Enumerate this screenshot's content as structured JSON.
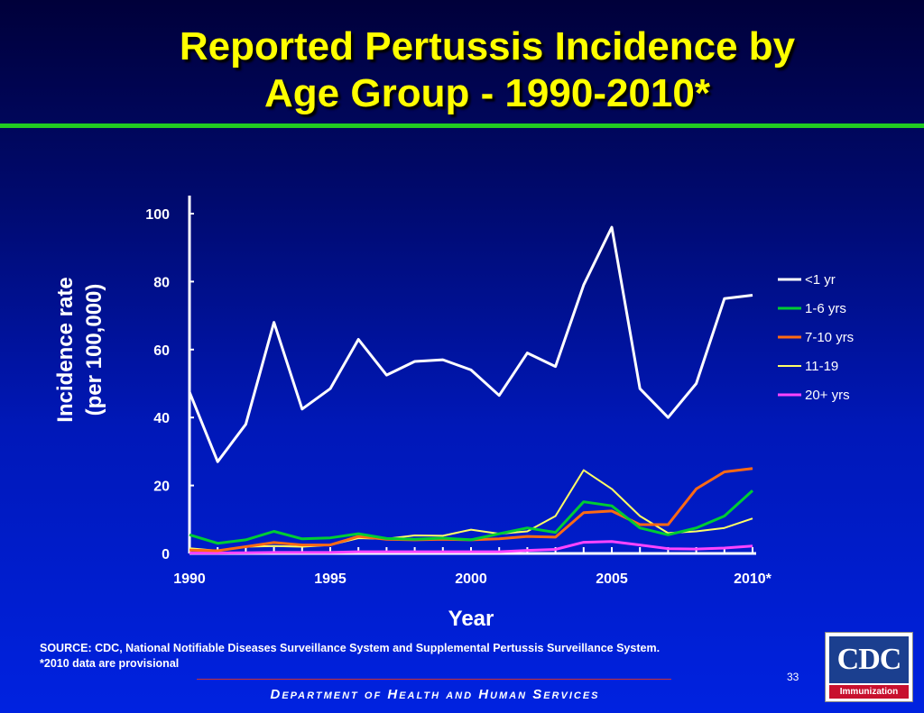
{
  "title": {
    "line1": "Reported Pertussis Incidence by",
    "line2": "Age Group - 1990-2010*"
  },
  "colors": {
    "title": "#ffff00",
    "rule": "#22cc22",
    "axis": "#ffffff"
  },
  "chart_data": {
    "type": "line",
    "xlabel": "Year",
    "ylabel": [
      "Incidence rate",
      "(per 100,000)"
    ],
    "x": [
      1990,
      1991,
      1992,
      1993,
      1994,
      1995,
      1996,
      1997,
      1998,
      1999,
      2000,
      2001,
      2002,
      2003,
      2004,
      2005,
      2006,
      2007,
      2008,
      2009,
      2010
    ],
    "x_tick_labels": [
      {
        "x": 1990,
        "label": "1990"
      },
      {
        "x": 1995,
        "label": "1995"
      },
      {
        "x": 2000,
        "label": "2000"
      },
      {
        "x": 2005,
        "label": "2005"
      },
      {
        "x": 2010,
        "label": "2010*"
      }
    ],
    "xlim": [
      1990,
      2010
    ],
    "ylim": [
      0,
      100
    ],
    "y_ticks": [
      0,
      20,
      40,
      60,
      80,
      100
    ],
    "grid": false,
    "legend": "right",
    "series": [
      {
        "name": "<1 yr",
        "color": "#ffffff",
        "values": [
          47.5,
          27.0,
          38.0,
          68.0,
          42.5,
          48.5,
          63.0,
          52.5,
          56.5,
          57.0,
          54.0,
          46.5,
          59.0,
          55.0,
          79.0,
          96.0,
          48.5,
          40.0,
          50.0,
          75.0,
          76.0
        ]
      },
      {
        "name": "1-6 yrs",
        "color": "#00cc33",
        "values": [
          5.5,
          3.0,
          4.0,
          6.5,
          4.3,
          4.6,
          5.8,
          4.4,
          4.2,
          4.5,
          4.0,
          5.8,
          7.5,
          6.2,
          15.2,
          14.0,
          7.5,
          5.5,
          7.5,
          11.0,
          18.5
        ]
      },
      {
        "name": "7-10 yrs",
        "color": "#ff6a13",
        "values": [
          1.0,
          0.8,
          2.0,
          3.2,
          2.5,
          2.5,
          5.0,
          4.2,
          4.0,
          4.2,
          4.0,
          4.3,
          5.0,
          4.8,
          12.0,
          12.5,
          8.5,
          8.5,
          19.0,
          24.0,
          25.0
        ]
      },
      {
        "name": "11-19",
        "color": "#ffff66",
        "values": [
          1.5,
          0.8,
          2.0,
          2.2,
          2.0,
          2.5,
          4.5,
          4.3,
          5.3,
          5.2,
          7.0,
          5.8,
          6.5,
          11.0,
          24.5,
          19.0,
          11.0,
          6.0,
          6.5,
          7.5,
          10.3
        ]
      },
      {
        "name": "20+ yrs",
        "color": "#ff44ff",
        "values": [
          0.1,
          0.1,
          0.2,
          0.3,
          0.3,
          0.3,
          0.5,
          0.5,
          0.5,
          0.5,
          0.5,
          0.5,
          0.9,
          1.2,
          3.3,
          3.5,
          2.5,
          1.4,
          1.3,
          1.6,
          2.2
        ]
      }
    ]
  },
  "source": {
    "line1": "SOURCE: CDC, National Notifiable Diseases Surveillance System and Supplemental Pertussis Surveillance System.",
    "line2": "*2010 data are provisional"
  },
  "page_number": "33",
  "footer": "Department of Health and Human Services",
  "logo": {
    "text": "CDC",
    "subtext": "Immunization"
  }
}
